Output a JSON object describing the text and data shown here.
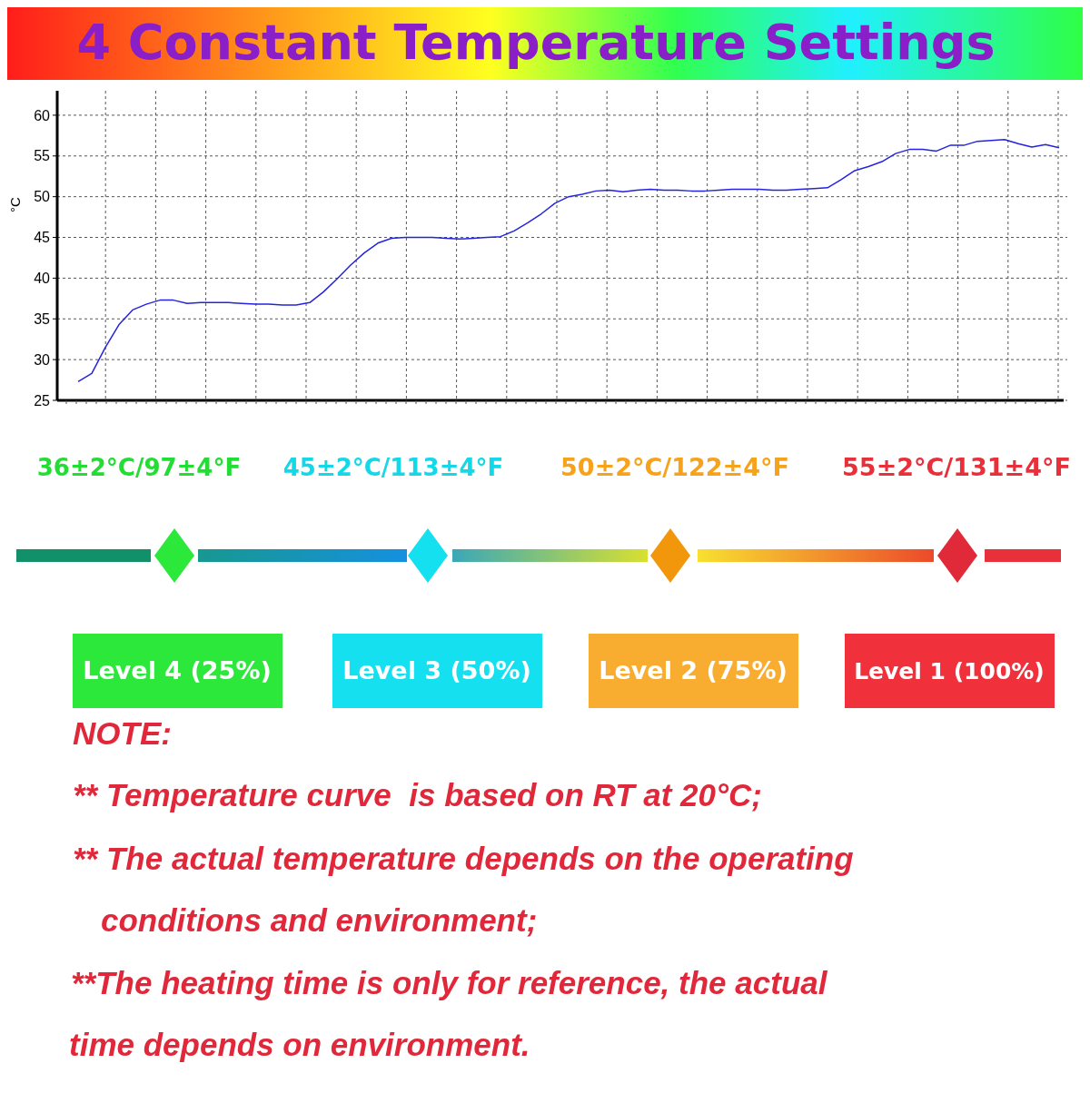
{
  "chart_data": {
    "type": "line",
    "title": "4 Constant Temperature Settings",
    "ylabel": "°C",
    "categories": [
      null,
      null,
      null,
      null,
      null,
      null,
      null,
      null,
      null,
      null,
      null,
      null,
      null,
      null,
      null,
      null,
      null,
      null,
      null,
      null,
      null,
      null,
      null,
      null,
      null,
      null,
      null,
      null,
      null,
      null,
      null,
      null,
      null,
      null,
      null,
      null,
      null,
      null,
      null,
      null,
      null,
      null,
      null,
      null,
      null,
      null,
      null,
      null,
      null,
      null,
      null,
      null,
      null,
      null,
      null,
      null,
      null,
      null,
      null,
      null,
      null,
      null,
      null,
      null,
      null,
      null,
      null,
      null,
      null,
      null,
      null,
      null,
      null
    ],
    "series": [
      {
        "color": "#2424e0",
        "values": [
          27.3,
          28.3,
          31.5,
          34.3,
          36.1,
          36.8,
          37.3,
          37.3,
          36.9,
          37.0,
          37.0,
          37.0,
          36.9,
          36.8,
          36.8,
          36.7,
          36.7,
          37.0,
          38.3,
          39.9,
          41.6,
          43.1,
          44.3,
          44.9,
          45.0,
          45.0,
          45.0,
          44.9,
          44.8,
          44.9,
          45.0,
          45.1,
          45.8,
          46.8,
          47.9,
          49.2,
          50.0,
          50.3,
          50.7,
          50.8,
          50.6,
          50.8,
          50.9,
          50.8,
          50.8,
          50.7,
          50.7,
          50.8,
          50.9,
          50.9,
          50.9,
          50.8,
          50.8,
          50.9,
          51.0,
          51.1,
          52.1,
          53.2,
          53.7,
          54.3,
          55.3,
          55.8,
          55.8,
          55.6,
          56.3,
          56.3,
          56.8,
          56.9,
          57.0,
          56.5,
          56.1,
          56.4,
          56.0
        ]
      }
    ],
    "ylim": [
      25,
      63
    ],
    "yticks": [
      25,
      30,
      35,
      40,
      45,
      50,
      55,
      60
    ],
    "grid": true,
    "line_style": "solid",
    "annotations": [
      "36±2°C/97±4°F",
      "45±2°C/113±4°F",
      "50±2°C/122±4°F",
      "55±2°C/131±4°F",
      "Level 4 (25%)",
      "Level 3 (50%)",
      "Level 2 (75%)",
      "Level 1 (100%)",
      "NOTE:",
      "** Temperature curve  is based on RT at 20°C;",
      "** The actual temperature depends on the operating",
      "conditions and environment;",
      "**The heating time is only for reference, the actual",
      "time depends on environment."
    ]
  }
}
